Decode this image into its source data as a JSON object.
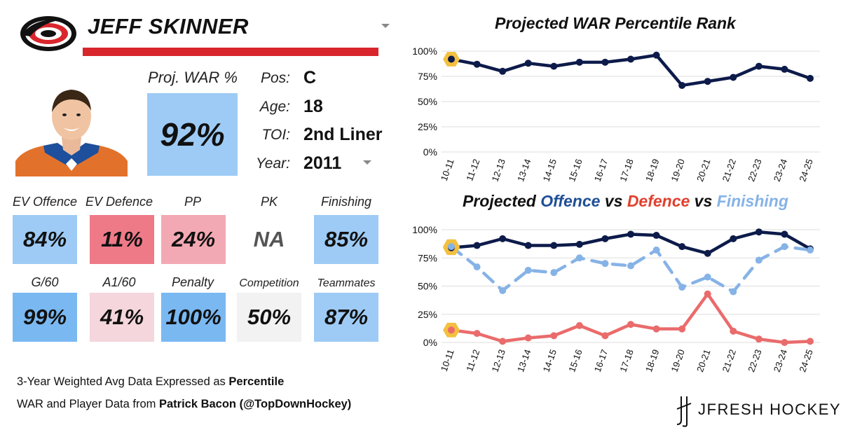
{
  "header": {
    "player_name": "JEFF SKINNER",
    "team_logo": "carolina-hurricanes-logo"
  },
  "war": {
    "label": "Proj. WAR %",
    "value": "92%",
    "color": "#9ecbf5"
  },
  "info": [
    {
      "key": "Pos:",
      "value": "C"
    },
    {
      "key": "Age:",
      "value": "18"
    },
    {
      "key": "TOI:",
      "value": "2nd Liner"
    },
    {
      "key": "Year:",
      "value": "2011"
    }
  ],
  "tiles_row1": [
    {
      "label": "EV Offence",
      "value": "84%",
      "color": "#9ecbf5"
    },
    {
      "label": "EV Defence",
      "value": "11%",
      "color": "#ee7a88"
    },
    {
      "label": "PP",
      "value": "24%",
      "color": "#f3a9b3"
    },
    {
      "label": "PK",
      "value": "NA",
      "color": "#ffffff"
    },
    {
      "label": "Finishing",
      "value": "85%",
      "color": "#9ecbf5"
    }
  ],
  "tiles_row2": [
    {
      "label": "G/60",
      "value": "99%",
      "color": "#7ab8f2"
    },
    {
      "label": "A1/60",
      "value": "41%",
      "color": "#f4d6dc"
    },
    {
      "label": "Penalty",
      "value": "100%",
      "color": "#7ab8f2"
    },
    {
      "label": "Competition",
      "value": "50%",
      "color": "#f2f2f2"
    },
    {
      "label": "Teammates",
      "value": "87%",
      "color": "#9ecbf5"
    }
  ],
  "footer": {
    "line1_prefix": "3-Year Weighted Avg Data Expressed as ",
    "line1_bold": "Percentile",
    "line2_prefix": "WAR and Player Data from ",
    "line2_bold": "Patrick Bacon (@TopDownHockey)"
  },
  "brand": {
    "name": "JFRESH HOCKEY"
  },
  "chart_data": [
    {
      "type": "line",
      "title": "Projected WAR Percentile Rank",
      "categories": [
        "10-11",
        "11-12",
        "12-13",
        "13-14",
        "14-15",
        "15-16",
        "16-17",
        "17-18",
        "18-19",
        "19-20",
        "20-21",
        "21-22",
        "22-23",
        "23-24",
        "24-25"
      ],
      "series": [
        {
          "values": [
            92,
            87,
            80,
            88,
            85,
            89,
            89,
            92,
            96,
            66,
            70,
            74,
            85,
            82,
            73
          ],
          "color": "#0d1b4a",
          "dash": false,
          "highlight_index": 0
        }
      ],
      "ylim": [
        0,
        100
      ],
      "yticks": [
        "0%",
        "25%",
        "50%",
        "75%",
        "100%"
      ],
      "grid": true,
      "highlight_color": "#f3c03f"
    },
    {
      "type": "line",
      "title_parts": [
        {
          "text": "Projected ",
          "color": "#111111"
        },
        {
          "text": "Offence",
          "color": "#1f4e96"
        },
        {
          "text": " vs ",
          "color": "#111111"
        },
        {
          "text": "Defence",
          "color": "#e0402d"
        },
        {
          "text": " vs ",
          "color": "#111111"
        },
        {
          "text": "Finishing",
          "color": "#86b3e6"
        }
      ],
      "categories": [
        "10-11",
        "11-12",
        "12-13",
        "13-14",
        "14-15",
        "15-16",
        "16-17",
        "17-18",
        "18-19",
        "19-20",
        "20-21",
        "21-22",
        "22-23",
        "23-24",
        "24-25"
      ],
      "series": [
        {
          "name": "Offence",
          "values": [
            84,
            86,
            92,
            86,
            86,
            87,
            92,
            96,
            95,
            85,
            79,
            92,
            98,
            96,
            83
          ],
          "color": "#0d1b4a",
          "dash": false
        },
        {
          "name": "Finishing",
          "values": [
            85,
            67,
            46,
            64,
            62,
            75,
            70,
            68,
            82,
            49,
            58,
            45,
            73,
            85,
            82
          ],
          "color": "#86b3e6",
          "dash": true
        },
        {
          "name": "Defence",
          "values": [
            11,
            8,
            1,
            4,
            6,
            15,
            6,
            16,
            12,
            12,
            43,
            10,
            3,
            0,
            1
          ],
          "color": "#ea6b6b",
          "dash": false
        }
      ],
      "ylim": [
        0,
        100
      ],
      "yticks": [
        "0%",
        "25%",
        "50%",
        "75%",
        "100%"
      ],
      "grid": true,
      "highlight_color": "#f3c03f"
    }
  ]
}
